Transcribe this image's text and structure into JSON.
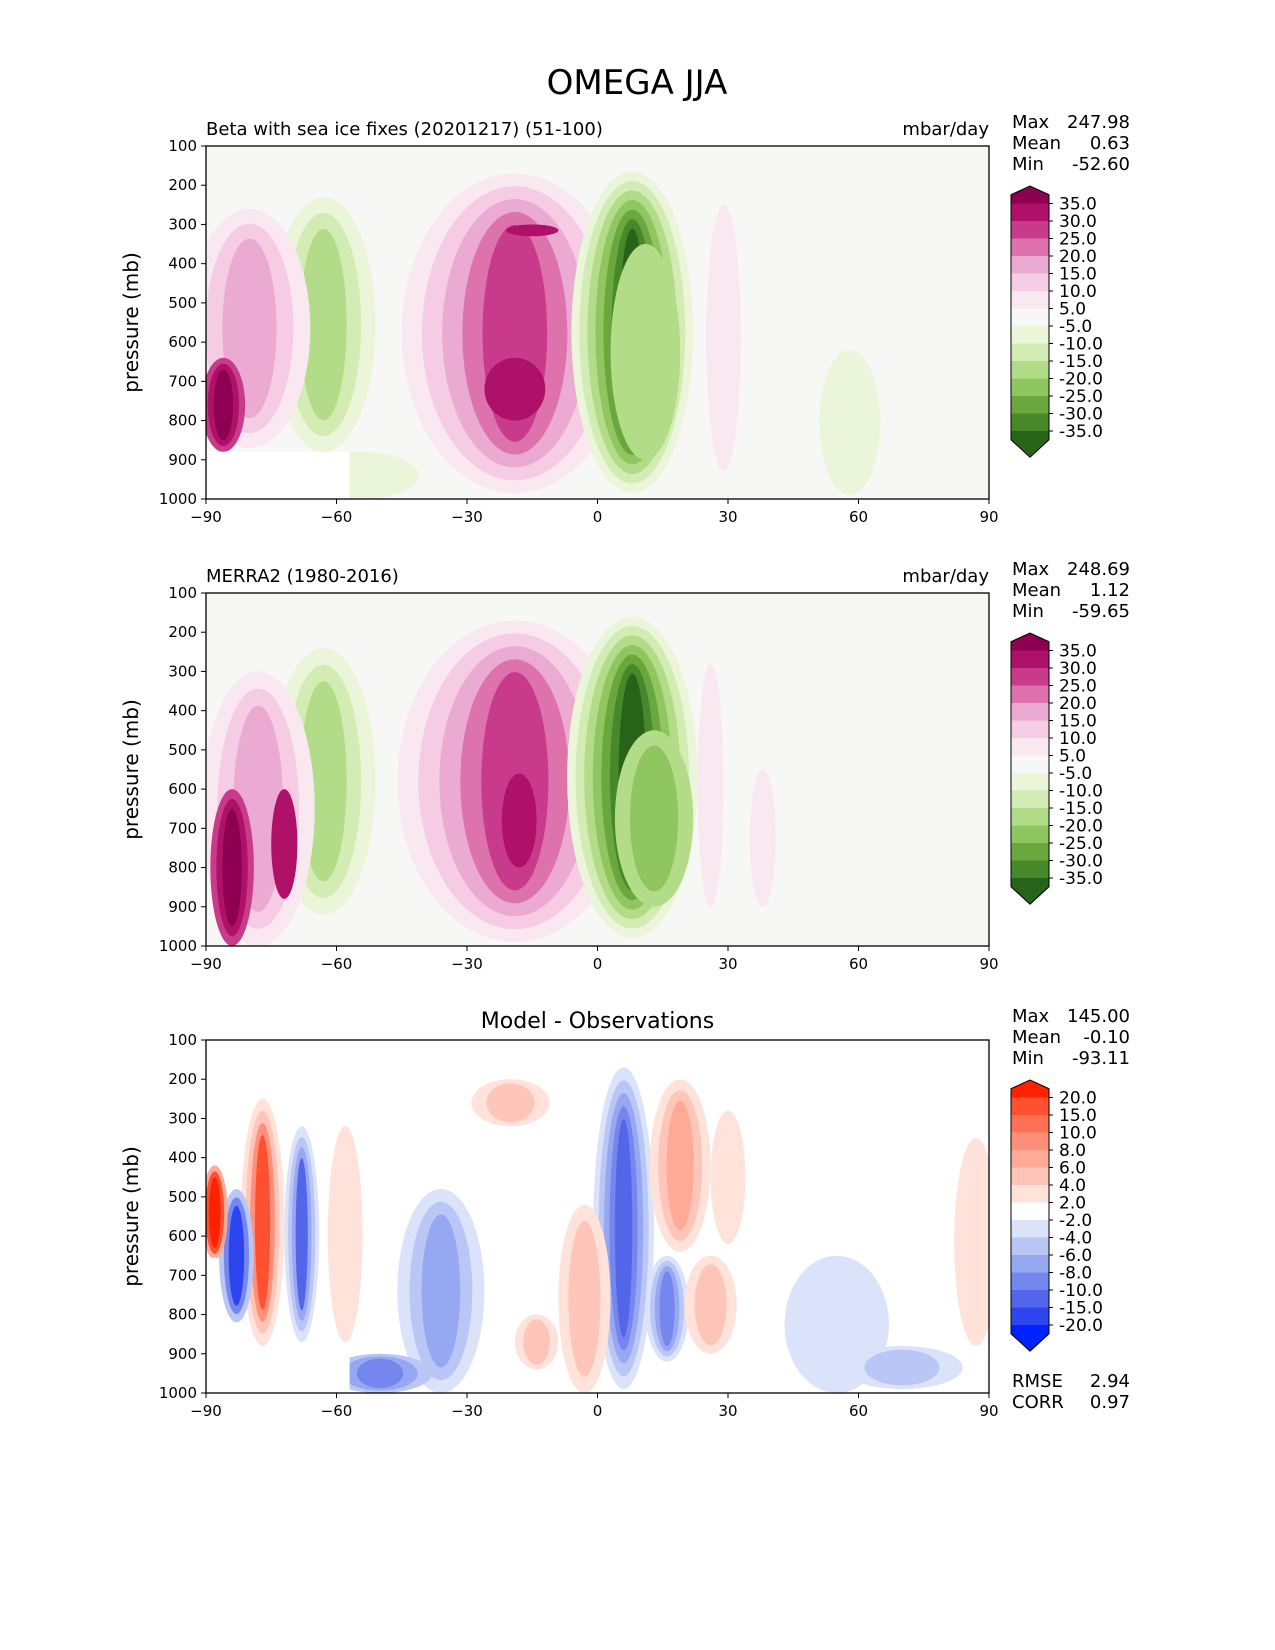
{
  "figure_title": "OMEGA JJA",
  "chart_data": [
    {
      "type": "heatmap",
      "title": "Beta with sea ice fixes (20201217) (51-100)",
      "units": "mbar/day",
      "ylabel": "pressure (mb)",
      "xlim": [
        -90,
        90
      ],
      "ylim": [
        1000,
        100
      ],
      "xticks": [
        "−90",
        "−60",
        "−30",
        "0",
        "30",
        "60",
        "90"
      ],
      "yticks": [
        "100",
        "200",
        "300",
        "400",
        "500",
        "600",
        "700",
        "800",
        "900",
        "1000"
      ],
      "stats": [
        {
          "label": "Max",
          "value": "247.98"
        },
        {
          "label": "Mean",
          "value": "0.63"
        },
        {
          "label": "Min",
          "value": "-52.60"
        }
      ],
      "colorbar": {
        "labels": [
          "35.0",
          "30.0",
          "25.0",
          "20.0",
          "15.0",
          "10.0",
          "5.0",
          "-5.0",
          "-10.0",
          "-15.0",
          "-20.0",
          "-25.0",
          "-30.0",
          "-35.0"
        ],
        "colors": [
          "#8e0152",
          "#ae1167",
          "#c83b8b",
          "#dd72ad",
          "#ebaad1",
          "#f5ccE3",
          "#fae8f1",
          "#f7f7f7",
          "#eaf5da",
          "#d2ecb3",
          "#b2dc87",
          "#8fc65f",
          "#6aa83e",
          "#47882b",
          "#276419"
        ]
      },
      "features": [
        {
          "type": "blob",
          "lat": -20,
          "p_top": 250,
          "p_bot": 920,
          "intensity": 22
        },
        {
          "type": "blob",
          "lat": 8,
          "p_top": 240,
          "p_bot": 900,
          "intensity": -40
        },
        {
          "type": "blob",
          "lat": -63,
          "p_top": 300,
          "p_bot": 880,
          "intensity": -18
        },
        {
          "type": "blob",
          "lat": -78,
          "p_top": 300,
          "p_bot": 880,
          "intensity": 15
        },
        {
          "type": "blob",
          "lat": 60,
          "p_top": 600,
          "p_bot": 1000,
          "intensity": -7
        }
      ]
    },
    {
      "type": "heatmap",
      "title": "MERRA2 (1980-2016)",
      "units": "mbar/day",
      "ylabel": "pressure (mb)",
      "xlim": [
        -90,
        90
      ],
      "ylim": [
        1000,
        100
      ],
      "xticks": [
        "−90",
        "−60",
        "−30",
        "0",
        "30",
        "60",
        "90"
      ],
      "yticks": [
        "100",
        "200",
        "300",
        "400",
        "500",
        "600",
        "700",
        "800",
        "900",
        "1000"
      ],
      "stats": [
        {
          "label": "Max",
          "value": "248.69"
        },
        {
          "label": "Mean",
          "value": "1.12"
        },
        {
          "label": "Min",
          "value": "-59.65"
        }
      ],
      "colorbar": {
        "labels": [
          "35.0",
          "30.0",
          "25.0",
          "20.0",
          "15.0",
          "10.0",
          "5.0",
          "-5.0",
          "-10.0",
          "-15.0",
          "-20.0",
          "-25.0",
          "-30.0",
          "-35.0"
        ],
        "colors": [
          "#8e0152",
          "#ae1167",
          "#c83b8b",
          "#dd72ad",
          "#ebaad1",
          "#f5cce3",
          "#fae8f1",
          "#f7f7f7",
          "#eaf5da",
          "#d2ecb3",
          "#b2dc87",
          "#8fc65f",
          "#6aa83e",
          "#47882b",
          "#276419"
        ]
      }
    },
    {
      "type": "heatmap",
      "title": "Model - Observations",
      "units": "",
      "ylabel": "pressure (mb)",
      "xlim": [
        -90,
        90
      ],
      "ylim": [
        1000,
        100
      ],
      "xticks": [
        "−90",
        "−60",
        "−30",
        "0",
        "30",
        "60",
        "90"
      ],
      "yticks": [
        "100",
        "200",
        "300",
        "400",
        "500",
        "600",
        "700",
        "800",
        "900",
        "1000"
      ],
      "stats": [
        {
          "label": "Max",
          "value": "145.00"
        },
        {
          "label": "Mean",
          "value": "-0.10"
        },
        {
          "label": "Min",
          "value": "-93.11"
        }
      ],
      "bottom_stats": [
        {
          "label": "RMSE",
          "value": "2.94"
        },
        {
          "label": "CORR",
          "value": "0.97"
        }
      ],
      "colorbar": {
        "labels": [
          "20.0",
          "15.0",
          "10.0",
          "8.0",
          "6.0",
          "4.0",
          "2.0",
          "-2.0",
          "-4.0",
          "-6.0",
          "-8.0",
          "-10.0",
          "-15.0",
          "-20.0"
        ],
        "colors": [
          "#ff2200",
          "#ff5030",
          "#ff7055",
          "#ff8f78",
          "#ffaa96",
          "#ffc5b8",
          "#ffe2da",
          "#ffffff",
          "#dbe3fa",
          "#b9c6f6",
          "#97a8f2",
          "#7587ee",
          "#5366ea",
          "#2c45ee",
          "#0022ff"
        ]
      }
    }
  ]
}
